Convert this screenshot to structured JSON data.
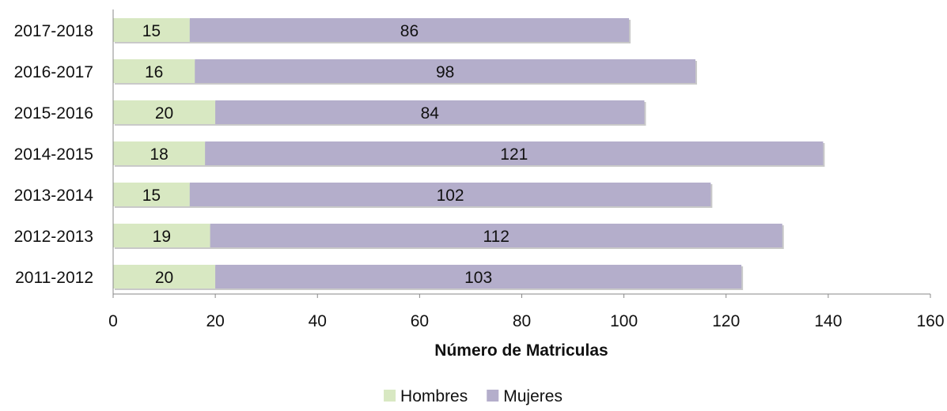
{
  "chart_data": {
    "type": "bar",
    "orientation": "horizontal",
    "stacked": true,
    "categories": [
      "2017-2018",
      "2016-2017",
      "2015-2016",
      "2014-2015",
      "2013-2014",
      "2012-2013",
      "2011-2012"
    ],
    "series": [
      {
        "name": "Hombres",
        "color": "#d8e8c2",
        "values": [
          15,
          16,
          20,
          18,
          15,
          19,
          20
        ]
      },
      {
        "name": "Mujeres",
        "color": "#b4aecb",
        "values": [
          86,
          98,
          84,
          121,
          102,
          112,
          103
        ]
      }
    ],
    "title": "",
    "xlabel": "Número de Matriculas",
    "ylabel": "",
    "xlim": [
      0,
      160
    ],
    "xticks": [
      0,
      20,
      40,
      60,
      80,
      100,
      120,
      140,
      160
    ],
    "grid": false,
    "legend_position": "bottom"
  }
}
